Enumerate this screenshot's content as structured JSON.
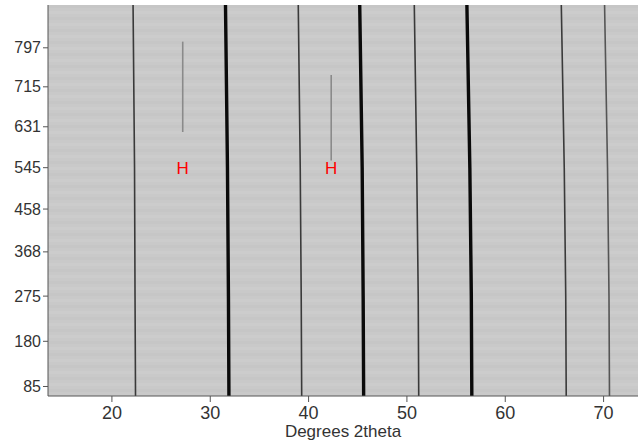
{
  "chart_data": {
    "type": "line",
    "x_label": "Degrees 2theta",
    "xlim": [
      13.5,
      73.5
    ],
    "xticks": [
      20,
      30,
      40,
      50,
      60,
      70
    ],
    "ylim": [
      65,
      887
    ],
    "yticks": [
      85,
      180,
      275,
      368,
      458,
      545,
      631,
      715,
      797
    ],
    "grid": false,
    "y": [
      65,
      275,
      545,
      887
    ],
    "series": [
      {
        "color": "#3a3a3a",
        "line_style": "thin",
        "x": [
          22.4,
          22.35,
          22.3,
          22.15
        ]
      },
      {
        "color": "#0a0a0a",
        "line_style": "thick",
        "x": [
          31.9,
          31.85,
          31.75,
          31.55
        ]
      },
      {
        "color": "#3a3a3a",
        "line_style": "thin",
        "x": [
          39.3,
          39.25,
          39.15,
          38.95
        ]
      },
      {
        "color": "#0a0a0a",
        "line_style": "thick",
        "x": [
          45.6,
          45.55,
          45.45,
          45.2
        ]
      },
      {
        "color": "#3a3a3a",
        "line_style": "thin",
        "x": [
          51.2,
          51.15,
          51.0,
          50.75
        ]
      },
      {
        "color": "#0a0a0a",
        "line_style": "thick",
        "x": [
          56.6,
          56.55,
          56.4,
          56.1
        ]
      },
      {
        "color": "#3a3a3a",
        "line_style": "thin",
        "x": [
          66.2,
          66.15,
          66.0,
          65.7
        ]
      },
      {
        "color": "#555555",
        "line_style": "thin",
        "x": [
          70.6,
          70.55,
          70.4,
          70.1
        ]
      },
      {
        "color": "#8a8a8a",
        "line_style": "thin",
        "x": [
          27.2,
          27.2
        ],
        "y": [
          620,
          810
        ]
      },
      {
        "color": "#8a8a8a",
        "line_style": "thin",
        "x": [
          42.3,
          42.3
        ],
        "y": [
          560,
          740
        ]
      }
    ],
    "annotations": [
      {
        "text": "H",
        "x": 27.2,
        "y": 545,
        "color": "#ff0000"
      },
      {
        "text": "H",
        "x": 42.3,
        "y": 545,
        "color": "#ff0000"
      }
    ]
  }
}
